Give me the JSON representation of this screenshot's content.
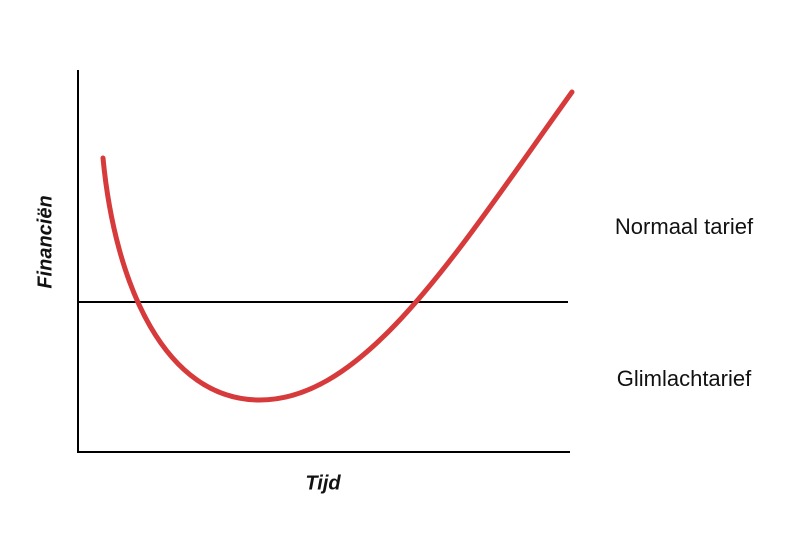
{
  "axes": {
    "y_label": "Financiën",
    "x_label": "Tijd"
  },
  "regions": [
    {
      "label": "Normaal tarief"
    },
    {
      "label": "Glimlachtarief"
    }
  ]
}
